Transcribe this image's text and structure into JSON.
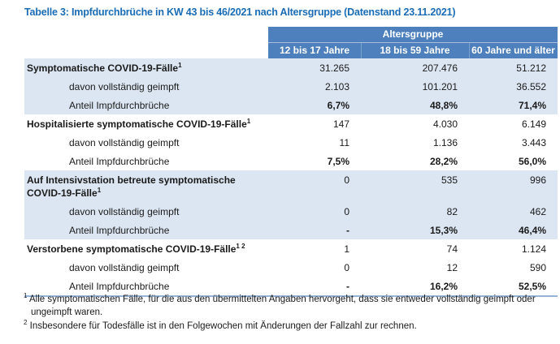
{
  "page": {
    "title": "Tabelle 3: Impfdurchbrüche in KW 43 bis 46/2021 nach Altersgruppe (Datenstand 23.11.2021)"
  },
  "colors": {
    "title_blue": "#1a6cb5",
    "header_blue": "#4d80bc",
    "row_shade": "#dce6f2",
    "table_bottom_border": "#95b3d7",
    "header_separator": "#a6bddb"
  },
  "table": {
    "group_header": "Altersgruppe",
    "columns": [
      "12 bis 17 Jahre",
      "18 bis 59 Jahre",
      "60 Jahre und älter"
    ],
    "row_labels": {
      "vaccinated": "davon vollständig geimpft",
      "share": "Anteil Impfdurchbrüche"
    },
    "sections": [
      {
        "name": "Symptomatische COVID-19-Fälle",
        "sup": "1",
        "cases": [
          "31.265",
          "207.476",
          "51.212"
        ],
        "vaccinated": [
          "2.103",
          "101.201",
          "36.552"
        ],
        "share": [
          "6,7%",
          "48,8%",
          "71,4%"
        ]
      },
      {
        "name": "Hospitalisierte symptomatische COVID-19-Fälle",
        "sup": "1",
        "cases": [
          "147",
          "4.030",
          "6.149"
        ],
        "vaccinated": [
          "11",
          "1.136",
          "3.443"
        ],
        "share": [
          "7,5%",
          "28,2%",
          "56,0%"
        ]
      },
      {
        "name": "Auf Intensivstation betreute symptomatische COVID-19-Fälle",
        "sup": "1",
        "cases": [
          "0",
          "535",
          "996"
        ],
        "vaccinated": [
          "0",
          "82",
          "462"
        ],
        "share": [
          "-",
          "15,3%",
          "46,4%"
        ]
      },
      {
        "name": "Verstorbene symptomatische COVID-19-Fälle",
        "sup": "1 2",
        "cases": [
          "1",
          "74",
          "1.124"
        ],
        "vaccinated": [
          "0",
          "12",
          "590"
        ],
        "share": [
          "-",
          "16,2%",
          "52,5%"
        ]
      }
    ]
  },
  "footnotes": [
    {
      "sup": "1",
      "text": "Alle symptomatischen Fälle, für die aus den übermittelten Angaben hervorgeht, dass sie entweder vollständig geimpft oder ungeimpft waren."
    },
    {
      "sup": "2",
      "text": "Insbesondere für Todesfälle ist in den Folgewochen mit Änderungen der Fallzahl zur rechnen."
    }
  ]
}
